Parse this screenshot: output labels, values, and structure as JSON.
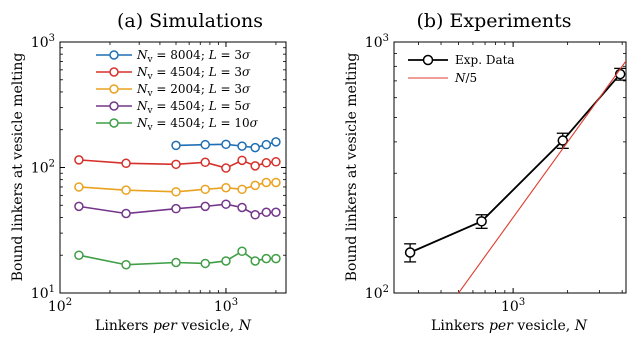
{
  "panels": [
    {
      "title": "(a)  Simulations",
      "chart_data": {
        "type": "line",
        "title": "(a)  Simulations",
        "xlabel": "Linkers per vesicle, N",
        "ylabel": "Bound linkers at vesicle melting",
        "xscale": "log",
        "yscale": "log",
        "xlim": [
          100,
          2300
        ],
        "ylim": [
          10,
          1000
        ],
        "xticks": [
          {
            "v": 100,
            "label": "10²"
          },
          {
            "v": 1000,
            "label": "10³"
          }
        ],
        "yticks": [
          {
            "v": 10,
            "label": "10¹"
          },
          {
            "v": 100,
            "label": "10²"
          },
          {
            "v": 1000,
            "label": "10³"
          }
        ],
        "legend_position": "top-right",
        "grid": false,
        "series": [
          {
            "name": "N_v = 8004; L = 3σ",
            "color": "#1f6fb4",
            "x": [
              500,
              750,
              1000,
              1250,
              1500,
              1750,
              2000
            ],
            "y": [
              150,
              152,
              153,
              148,
              144,
              152,
              160
            ]
          },
          {
            "name": "N_v = 4504; L = 3σ",
            "color": "#d6302a",
            "x": [
              130,
              250,
              500,
              750,
              1000,
              1250,
              1500,
              1750,
              2000
            ],
            "y": [
              115,
              108,
              106,
              110,
              99,
              114,
              103,
              109,
              111
            ]
          },
          {
            "name": "N_v = 2004; L = 3σ",
            "color": "#eaa21f",
            "x": [
              130,
              250,
              500,
              750,
              1000,
              1250,
              1500,
              1750,
              2000
            ],
            "y": [
              70,
              66,
              64,
              67,
              69,
              67,
              72,
              76,
              76
            ]
          },
          {
            "name": "N_v = 4504; L = 5σ",
            "color": "#74368a",
            "x": [
              130,
              250,
              500,
              750,
              1000,
              1250,
              1500,
              1750,
              2000
            ],
            "y": [
              49,
              43,
              47,
              49,
              51,
              48,
              42,
              44,
              44
            ]
          },
          {
            "name": "N_v = 4504; L = 10σ",
            "color": "#3f9e46",
            "x": [
              130,
              250,
              500,
              750,
              1000,
              1250,
              1500,
              1750,
              2000
            ],
            "y": [
              20,
              16.8,
              17.5,
              17.2,
              18,
              21.5,
              18,
              18.8,
              18.8
            ]
          }
        ]
      }
    },
    {
      "title": "(b)  Experiments",
      "chart_data": {
        "type": "line",
        "title": "(b)  Experiments",
        "xlabel": "Linkers per vesicle, N",
        "ylabel": "Bound linkers at vesicle melting",
        "xscale": "log",
        "yscale": "log",
        "xlim": [
          220,
          4200
        ],
        "ylim": [
          100,
          1000
        ],
        "xticks": [
          {
            "v": 1000,
            "label": "10³"
          }
        ],
        "yticks": [
          {
            "v": 100,
            "label": "10²"
          },
          {
            "v": 1000,
            "label": "10³"
          }
        ],
        "legend_position": "top-left",
        "grid": false,
        "series": [
          {
            "name": "Exp. Data",
            "color": "#000000",
            "marker": true,
            "x": [
              270,
              670,
              1880,
              3900
            ],
            "y": [
              145,
              193,
              405,
              745
            ],
            "err": [
              12,
              12,
              28,
              40
            ]
          },
          {
            "name": "N/5",
            "color": "#e03a2f",
            "marker": false,
            "x": [
              440,
              4200
            ],
            "y": [
              88,
              840
            ]
          }
        ]
      }
    }
  ]
}
